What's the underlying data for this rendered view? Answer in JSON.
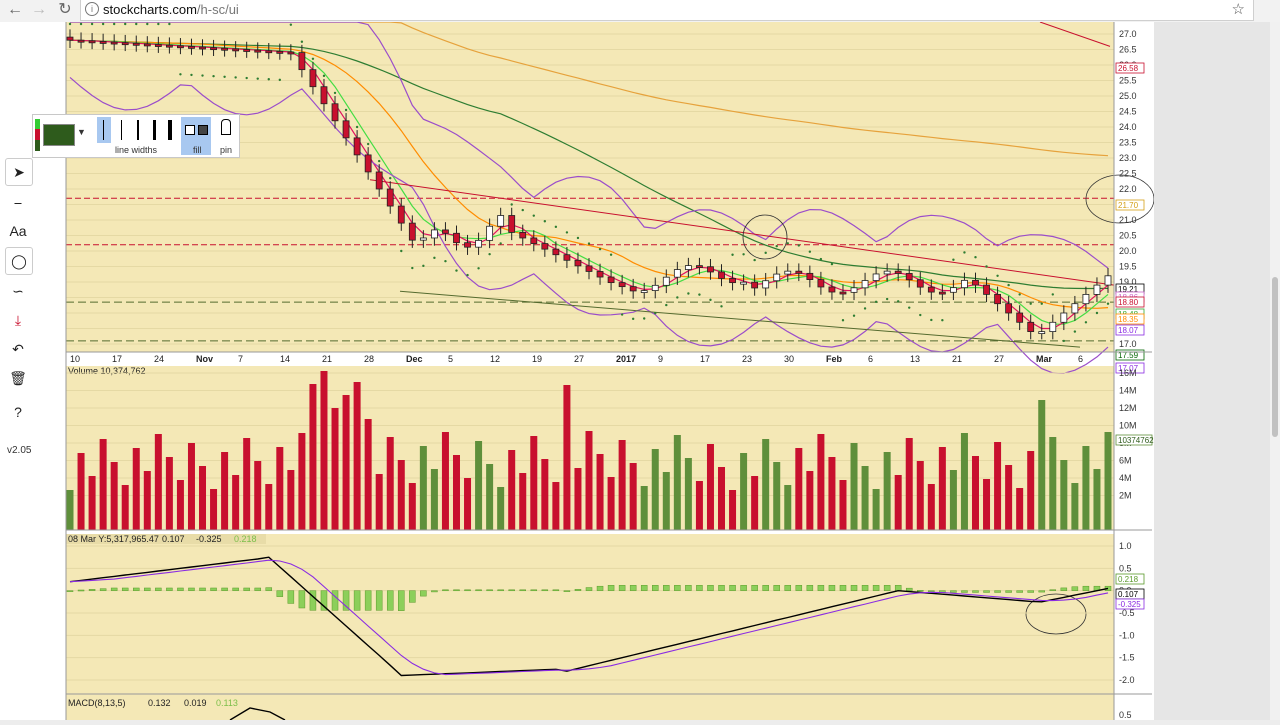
{
  "browser": {
    "url_domain": "stockcharts.com",
    "url_path": "/h-sc/ui"
  },
  "toolbar": {
    "version": "v2.05"
  },
  "propbar": {
    "line_widths_label": "line widths",
    "fill_label": "fill",
    "pin_label": "pin"
  },
  "colors": {
    "bg": "#f4e8b6",
    "up": "#5f8f3b",
    "down": "#c8102e",
    "grid": "#e5d9a4"
  },
  "price_axis": [
    "27.0",
    "26.5",
    "26.0",
    "25.5",
    "25.0",
    "24.5",
    "24.0",
    "23.5",
    "23.0",
    "22.5",
    "22.0",
    "21.5",
    "21.0",
    "20.5",
    "20.0",
    "19.5",
    "19.0",
    "18.5",
    "18.0",
    "17.5",
    "17.0"
  ],
  "price_tags": [
    {
      "text": "26.58",
      "color": "#c8102e"
    },
    {
      "text": "21.70",
      "color": "#d4a017"
    },
    {
      "text": "19.21",
      "color": "#000000"
    },
    {
      "text": "18.86",
      "color": "#cc66cc"
    },
    {
      "text": "18.80",
      "color": "#c8102e"
    },
    {
      "text": "18.48",
      "color": "#33aa33"
    },
    {
      "text": "18.35",
      "color": "#ff8c00"
    },
    {
      "text": "18.07",
      "color": "#8a2be2"
    },
    {
      "text": "17.59",
      "color": "#006400"
    },
    {
      "text": "17.07",
      "color": "#8a2be2"
    }
  ],
  "date_axis": [
    "10",
    "17",
    "24",
    "Nov",
    "7",
    "14",
    "21",
    "28",
    "Dec",
    "5",
    "12",
    "19",
    "27",
    "2017",
    "9",
    "17",
    "23",
    "30",
    "Feb",
    "6",
    "13",
    "21",
    "27",
    "Mar",
    "6"
  ],
  "volume": {
    "label": "Volume 10,374,762",
    "axis": [
      "16M",
      "14M",
      "12M",
      "10M",
      "8M",
      "6M",
      "4M",
      "2M"
    ],
    "tag": "10374762"
  },
  "ppo": {
    "label_date": "08 Mar Y:5,317,965.47",
    "v1": "0.107",
    "v2": "-0.325",
    "v3": "0.218",
    "axis": [
      "1.0",
      "0.5",
      "0.0",
      "-0.5",
      "-1.0",
      "-1.5",
      "-2.0"
    ],
    "tags": [
      "0.218",
      "0.107",
      "-0.325"
    ]
  },
  "macd": {
    "label": "MACD(8,13,5)",
    "v1": "0.132",
    "v2": "0.019",
    "v3": "0.113",
    "axis": [
      "0.5"
    ]
  }
}
